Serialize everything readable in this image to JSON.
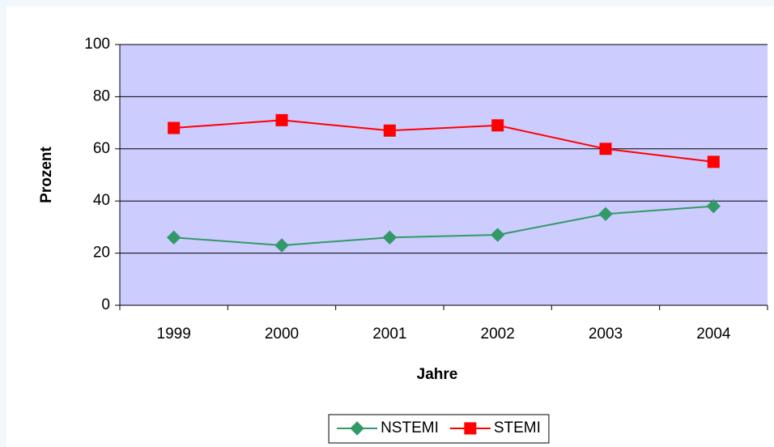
{
  "chart_data": {
    "type": "line",
    "categories": [
      "1999",
      "2000",
      "2001",
      "2002",
      "2003",
      "2004"
    ],
    "series": [
      {
        "name": "NSTEMI",
        "color": "#339966",
        "marker": "diamond",
        "values": [
          26,
          23,
          26,
          27,
          35,
          38
        ]
      },
      {
        "name": "STEMI",
        "color": "#ff0000",
        "marker": "square",
        "values": [
          68,
          71,
          67,
          69,
          60,
          55
        ]
      }
    ],
    "xlabel": "Jahre",
    "ylabel": "Prozent",
    "ylim": [
      0,
      100
    ],
    "yticks": [
      0,
      20,
      40,
      60,
      80,
      100
    ],
    "grid": true,
    "plot_background": "#ccccff",
    "legend": "bottom"
  }
}
